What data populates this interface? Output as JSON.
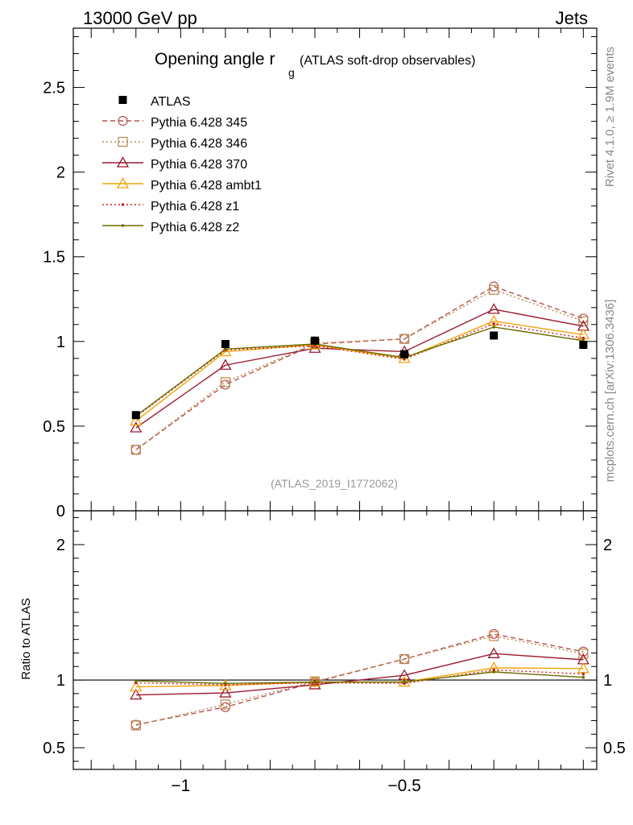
{
  "header": {
    "left": "13000 GeV pp",
    "right": "Jets"
  },
  "side_labels": {
    "rivet": "Rivet 4.1.0, ≥ 1.9M events",
    "mcplots": "mcplots.cern.ch [arXiv:1306.3436]"
  },
  "chart_data": {
    "type": "line",
    "title": "Opening angle r",
    "title_subscript": "g",
    "subtitle": "(ATLAS soft-drop observables)",
    "analysis_label": "(ATLAS_2019_I1772062)",
    "x": [
      -1.1,
      -0.9,
      -0.7,
      -0.5,
      -0.3,
      -0.1
    ],
    "xlim": [
      -1.24,
      -0.07
    ],
    "main_ylim": [
      0,
      2.85
    ],
    "main_yticks": [
      0,
      0.5,
      1,
      1.5,
      2,
      2.5
    ],
    "main_ytick_labels": [
      "0",
      "0.5",
      "1",
      "1.5",
      "2",
      "2.5"
    ],
    "ratio_ylim": [
      0.34,
      2.25
    ],
    "ratio_yticks": [
      0.5,
      1,
      2
    ],
    "ratio_ytick_labels": [
      "0.5",
      "1",
      "2"
    ],
    "ratio_ylabel": "Ratio to ATLAS",
    "xticks": [
      -1,
      -0.5
    ],
    "xtick_labels": [
      "−1",
      "−0.5"
    ],
    "legend_position": "top-left",
    "data": {
      "name": "ATLAS",
      "color": "#000000",
      "values": [
        0.565,
        0.985,
        1.005,
        0.925,
        1.035,
        0.98
      ]
    },
    "series": [
      {
        "name": "Pythia 6.428 345",
        "color": "#b84f4f",
        "dash": "6,4",
        "marker": "circle",
        "values": [
          0.36,
          0.745,
          0.985,
          1.015,
          1.325,
          1.135
        ],
        "ratio": [
          0.67,
          0.8,
          0.985,
          1.155,
          1.34,
          1.21
        ]
      },
      {
        "name": "Pythia 6.428 346",
        "color": "#b8864b",
        "dash": "2,3",
        "marker": "square",
        "values": [
          0.36,
          0.76,
          0.99,
          1.015,
          1.305,
          1.12
        ],
        "ratio": [
          0.665,
          0.82,
          0.99,
          1.155,
          1.325,
          1.195
        ]
      },
      {
        "name": "Pythia 6.428 370",
        "color": "#9b1b30",
        "dash": "",
        "marker": "triangle",
        "values": [
          0.49,
          0.86,
          0.96,
          0.94,
          1.19,
          1.09
        ],
        "ratio": [
          0.89,
          0.905,
          0.965,
          1.035,
          1.195,
          1.15
        ]
      },
      {
        "name": "Pythia 6.428 ambt1",
        "color": "#f0a30a",
        "dash": "",
        "marker": "triangle",
        "values": [
          0.53,
          0.94,
          0.98,
          0.9,
          1.12,
          1.04
        ],
        "ratio": [
          0.95,
          0.96,
          0.985,
          0.985,
          1.09,
          1.085
        ]
      },
      {
        "name": "Pythia 6.428 z1",
        "color": "#cc2222",
        "dash": "2,3",
        "marker": "dot",
        "values": [
          0.555,
          0.95,
          0.975,
          0.895,
          1.105,
          1.02
        ],
        "ratio": [
          0.98,
          0.965,
          0.98,
          0.975,
          1.075,
          1.045
        ]
      },
      {
        "name": "Pythia 6.428 z2",
        "color": "#6b6b00",
        "dash": "",
        "marker": "dot",
        "values": [
          0.56,
          0.955,
          0.985,
          0.905,
          1.085,
          1.005
        ],
        "ratio": [
          0.995,
          0.975,
          0.985,
          0.985,
          1.06,
          1.02
        ]
      }
    ]
  }
}
